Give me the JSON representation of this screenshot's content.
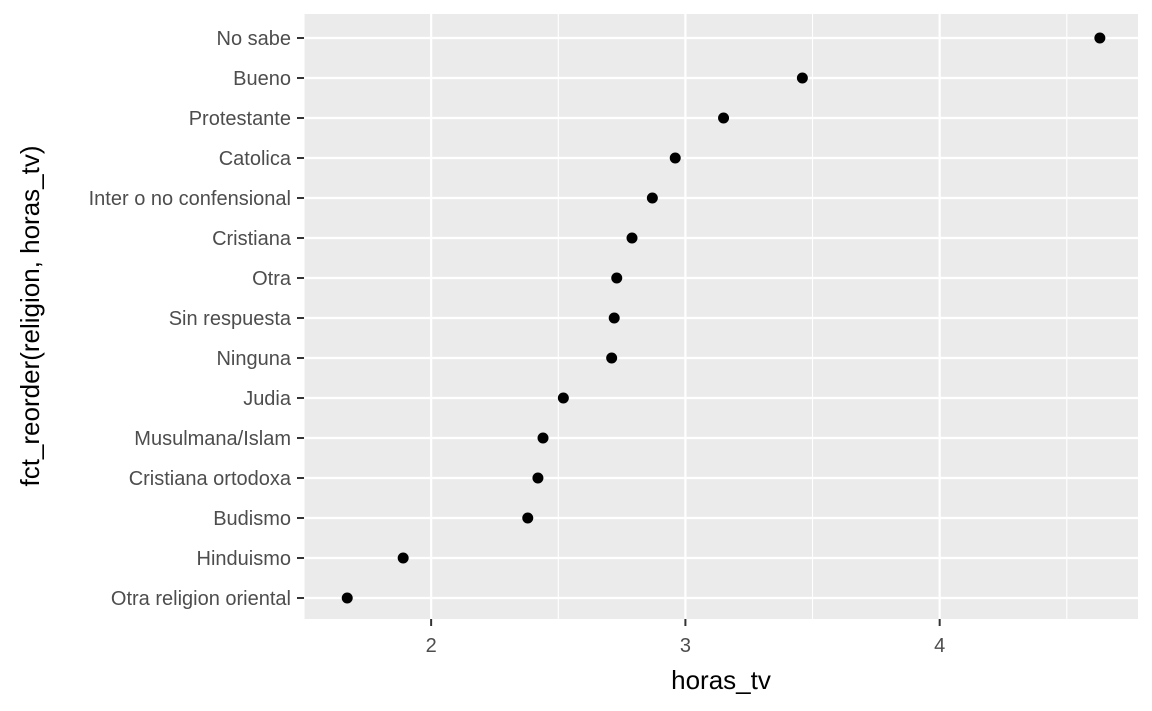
{
  "chart_data": {
    "type": "scatter",
    "xlabel": "horas_tv",
    "ylabel": "fct_reorder(religion, horas_tv)",
    "xlim": [
      1.5,
      4.78
    ],
    "xticks": [
      2,
      3,
      4
    ],
    "xtick_labels": [
      "2",
      "3",
      "4"
    ],
    "grid": true,
    "colors": {
      "panel": "#ebebeb",
      "grid": "#ffffff",
      "point": "#000000",
      "tick_text": "#4d4d4d",
      "tick_mark": "#333333"
    },
    "categories": [
      "Otra religion oriental",
      "Hinduismo",
      "Budismo",
      "Cristiana ortodoxa",
      "Musulmana/Islam",
      "Judia",
      "Ninguna",
      "Sin respuesta",
      "Otra",
      "Cristiana",
      "Inter o no confensional",
      "Catolica",
      "Protestante",
      "Bueno",
      "No sabe"
    ],
    "values": [
      1.67,
      1.89,
      2.38,
      2.42,
      2.44,
      2.52,
      2.71,
      2.72,
      2.73,
      2.79,
      2.87,
      2.96,
      3.15,
      3.46,
      4.63
    ]
  }
}
